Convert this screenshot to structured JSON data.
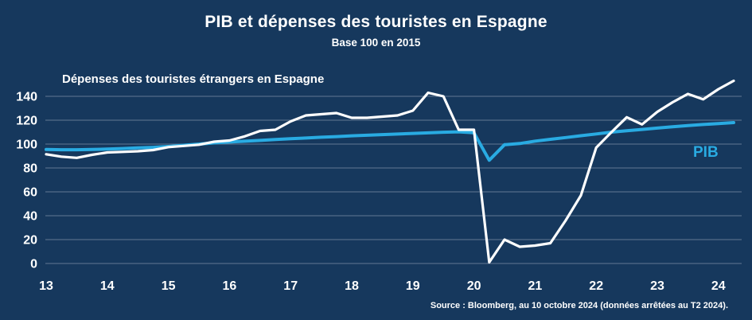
{
  "title": "PIB et dépenses des touristes en Espagne",
  "subtitle": "Base 100 en 2015",
  "source": "Source : Bloomberg, au 10 octobre 2024 (données arrêtées au T2 2024).",
  "colors": {
    "background": "#16385D",
    "spending_line": "#FFFFFF",
    "pib_line": "#29ABE2",
    "gridline": "#7E8EA4",
    "text": "#FFFFFF"
  },
  "chart_data": {
    "type": "line",
    "title": "PIB et dépenses des touristes en Espagne",
    "subtitle": "Base 100 en 2015",
    "xlabel": "",
    "ylabel": "",
    "grid": "horizontal",
    "legend_position": "inline-annotations",
    "x_tick_labels": [
      "13",
      "14",
      "15",
      "16",
      "17",
      "18",
      "19",
      "20",
      "21",
      "22",
      "23",
      "24"
    ],
    "y_ticks": [
      0,
      20,
      40,
      60,
      80,
      100,
      120,
      140
    ],
    "ylim": [
      0,
      155
    ],
    "x_unit": "année (données trimestrielles)",
    "x": [
      2013.0,
      2013.25,
      2013.5,
      2013.75,
      2014.0,
      2014.25,
      2014.5,
      2014.75,
      2015.0,
      2015.25,
      2015.5,
      2015.75,
      2016.0,
      2016.25,
      2016.5,
      2016.75,
      2017.0,
      2017.25,
      2017.5,
      2017.75,
      2018.0,
      2018.25,
      2018.5,
      2018.75,
      2019.0,
      2019.25,
      2019.5,
      2019.75,
      2020.0,
      2020.25,
      2020.5,
      2020.75,
      2021.0,
      2021.25,
      2021.5,
      2021.75,
      2022.0,
      2022.25,
      2022.5,
      2022.75,
      2023.0,
      2023.25,
      2023.5,
      2023.75,
      2024.0,
      2024.25
    ],
    "series": [
      {
        "key": "spending",
        "name": "Dépenses des touristes étrangers en Espagne",
        "color": "#FFFFFF",
        "values": [
          91.5,
          89.5,
          88.5,
          91,
          93,
          93.5,
          94,
          95,
          97.5,
          98.5,
          99.5,
          102,
          103,
          106.5,
          111,
          112,
          119,
          124,
          125,
          126,
          122,
          122,
          123,
          124,
          128,
          143,
          140,
          112,
          112,
          1,
          20,
          14,
          15,
          17,
          36,
          57,
          97,
          110,
          122.5,
          116.5,
          127,
          135,
          142,
          137.5,
          146,
          153
        ]
      },
      {
        "key": "pib",
        "name": "PIB",
        "color": "#29ABE2",
        "values": [
          95.5,
          95.3,
          95.3,
          95.5,
          95.8,
          96.3,
          96.8,
          97.3,
          98,
          99,
          100,
          101,
          101.7,
          102.4,
          103.1,
          103.8,
          104.5,
          105.1,
          105.7,
          106.3,
          106.9,
          107.4,
          107.9,
          108.4,
          108.9,
          109.4,
          109.9,
          110.3,
          109.5,
          86.5,
          99.5,
          100.5,
          102.5,
          104,
          105.5,
          107,
          108.5,
          110,
          111.2,
          112.3,
          113.4,
          114.5,
          115.5,
          116.4,
          117.2,
          118
        ]
      }
    ]
  }
}
